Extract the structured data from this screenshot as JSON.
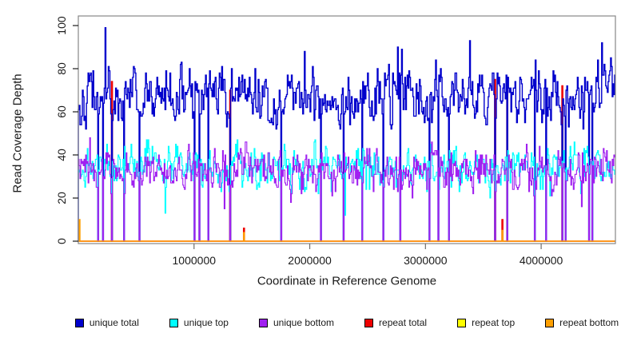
{
  "chart_data": {
    "type": "line",
    "title": "",
    "xlabel": "Coordinate in Reference Genome",
    "ylabel": "Read Coverage Depth",
    "xlim": [
      0,
      4641652
    ],
    "ylim": [
      0,
      100
    ],
    "x_ticks": [
      1000000,
      2000000,
      3000000,
      4000000
    ],
    "x_tick_labels": [
      "1000000",
      "2000000",
      "3000000",
      "4000000"
    ],
    "y_ticks": [
      0,
      20,
      40,
      60,
      80,
      100
    ],
    "y_tick_labels": [
      "0",
      "20",
      "40",
      "60",
      "80",
      "100"
    ],
    "grid": false,
    "legend_position": "bottom",
    "bin_size": 7000,
    "seed": 42,
    "plot_order": [
      4,
      3,
      0,
      1,
      2,
      5
    ],
    "zero_dropouts": [
      165000,
      207000,
      290000,
      390000,
      525000,
      1000000,
      1045000,
      1120000,
      1310000,
      1750000,
      2095000,
      2290000,
      2450000,
      2630000,
      2780000,
      3030000,
      3110000,
      3200000,
      3600000,
      3700000,
      3940000,
      4040000,
      4180000,
      4210000,
      4410000,
      4440000
    ],
    "series": [
      {
        "name": "unique total",
        "color": "#0000CC",
        "mean": 67,
        "sd": 6.0,
        "min": 52,
        "max": 99,
        "forced": [
          [
            230000,
            99
          ],
          [
            1950000,
            88
          ],
          [
            2760000,
            90
          ],
          [
            3380000,
            93
          ],
          [
            4520000,
            92
          ]
        ]
      },
      {
        "name": "unique top",
        "color": "#00FFFF",
        "mean": 34,
        "sd": 4.6,
        "min": 12,
        "max": 50,
        "forced": [
          [
            750000,
            13
          ],
          [
            2300000,
            12
          ]
        ]
      },
      {
        "name": "unique bottom",
        "color": "#A020F0",
        "mean": 33,
        "sd": 4.6,
        "min": 15,
        "max": 49,
        "forced": [
          [
            1260000,
            15
          ],
          [
            4350000,
            16
          ]
        ]
      },
      {
        "name": "repeat total",
        "color": "#EE0000",
        "baseline": 0,
        "spikes": [
          [
            290000,
            74
          ],
          [
            1310000,
            70
          ],
          [
            1430000,
            6
          ],
          [
            3600000,
            75
          ],
          [
            3660000,
            10
          ],
          [
            3700000,
            76
          ],
          [
            4180000,
            72
          ]
        ]
      },
      {
        "name": "repeat top",
        "color": "#FFFF00",
        "baseline": 0,
        "spikes": []
      },
      {
        "name": "repeat bottom",
        "color": "#FF9F00",
        "baseline": 0,
        "spikes": [
          [
            8000,
            10
          ],
          [
            1430000,
            4
          ],
          [
            3660000,
            5
          ]
        ]
      }
    ],
    "legend": [
      {
        "label": "unique total",
        "color": "#0000CC"
      },
      {
        "label": "unique top",
        "color": "#00FFFF"
      },
      {
        "label": "unique bottom",
        "color": "#A020F0"
      },
      {
        "label": "repeat total",
        "color": "#EE0000"
      },
      {
        "label": "repeat top",
        "color": "#FFFF00"
      },
      {
        "label": "repeat bottom",
        "color": "#FF9F00"
      }
    ]
  }
}
